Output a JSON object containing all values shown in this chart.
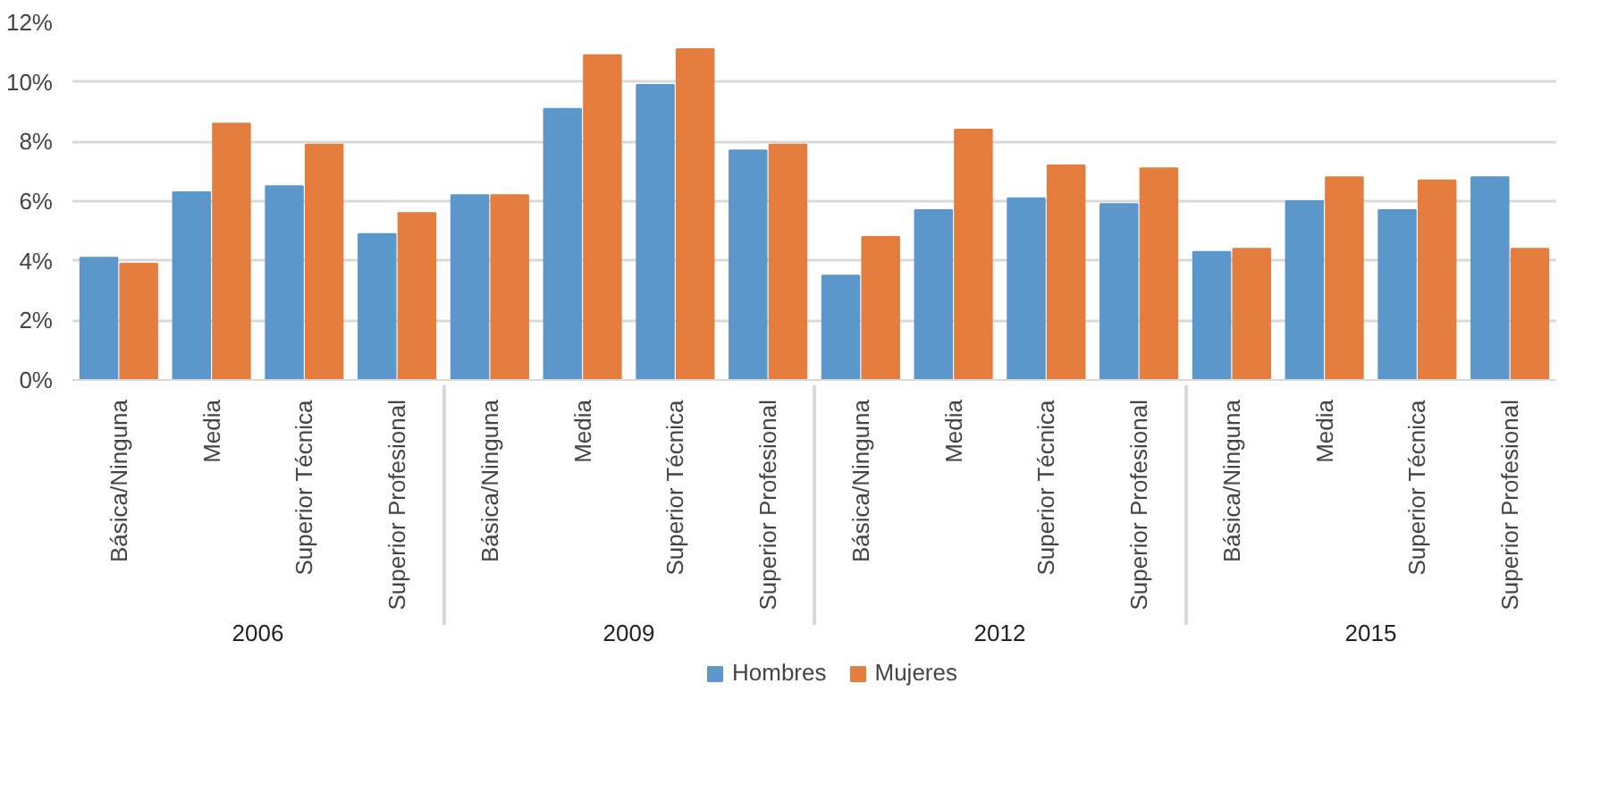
{
  "chart_data": {
    "type": "bar",
    "categories": [
      "Básica/Ninguna",
      "Media",
      "Superior Técnica",
      "Superior Profesional",
      "Básica/Ninguna",
      "Media",
      "Superior Técnica",
      "Superior Profesional",
      "Básica/Ninguna",
      "Media",
      "Superior Técnica",
      "Superior Profesional",
      "Básica/Ninguna",
      "Media",
      "Superior Técnica",
      "Superior Profesional"
    ],
    "annotations": [
      "2006",
      "2009",
      "2012",
      "2015"
    ],
    "series": [
      {
        "name": "Hombres",
        "color": "#5b97cb",
        "values": [
          4.1,
          6.3,
          6.5,
          4.9,
          6.2,
          9.1,
          9.9,
          7.7,
          3.5,
          5.7,
          6.1,
          5.9,
          4.3,
          6.0,
          5.7,
          6.8
        ]
      },
      {
        "name": "Mujeres",
        "color": "#e47d3e",
        "values": [
          3.9,
          8.6,
          7.9,
          5.6,
          6.2,
          10.9,
          11.1,
          7.9,
          4.8,
          8.4,
          7.2,
          7.1,
          4.4,
          6.8,
          6.7,
          4.4
        ]
      }
    ],
    "ylim": [
      0,
      12
    ],
    "yticks": [
      {
        "value": 0,
        "label": "0%"
      },
      {
        "value": 2,
        "label": "2%"
      },
      {
        "value": 4,
        "label": "4%"
      },
      {
        "value": 6,
        "label": "6%"
      },
      {
        "value": 8,
        "label": "8%"
      },
      {
        "value": 10,
        "label": "10%"
      },
      {
        "value": 12,
        "label": "12%"
      }
    ],
    "grid": "y",
    "legend": "bottom"
  }
}
